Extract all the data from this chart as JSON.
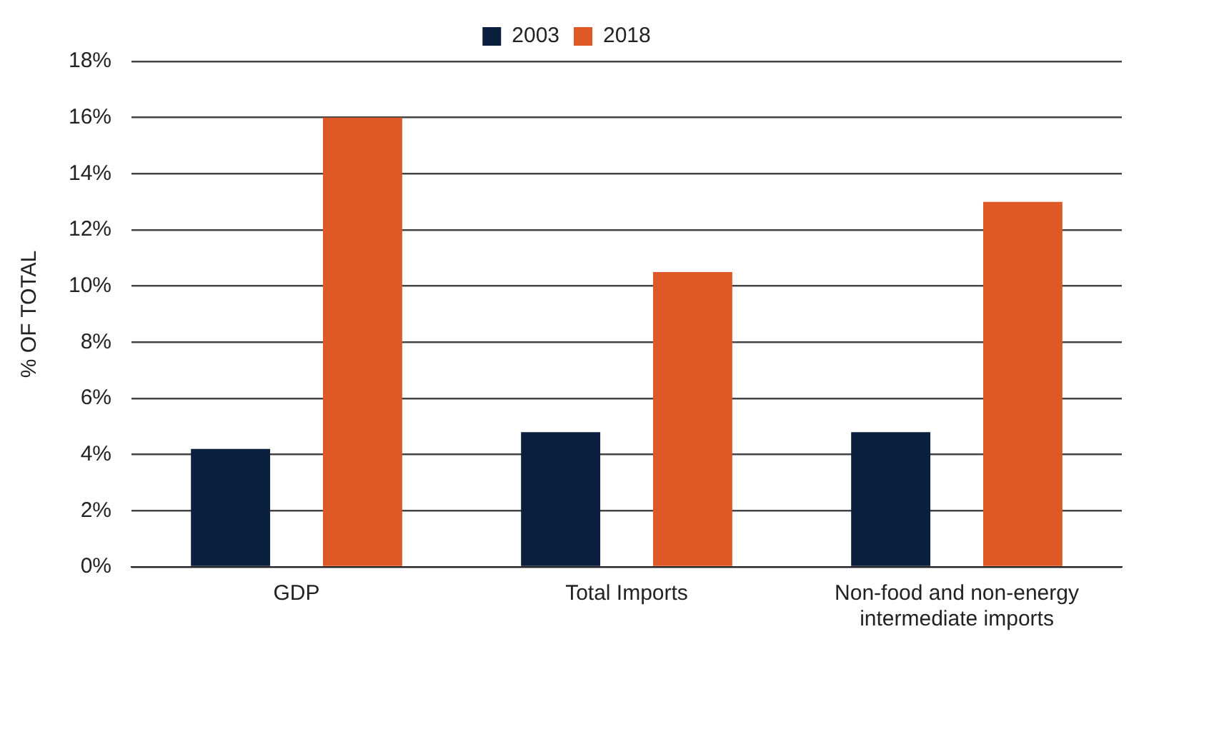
{
  "chart_data": {
    "type": "bar",
    "ylabel": "% OF TOTAL",
    "categories": [
      "GDP",
      "Total Imports",
      "Non-food and non-energy intermediate imports"
    ],
    "series": [
      {
        "name": "2003",
        "color": "#0b1f3f",
        "values": [
          4.2,
          4.8,
          4.8
        ]
      },
      {
        "name": "2018",
        "color": "#df5926",
        "values": [
          16.0,
          10.5,
          13.0
        ]
      }
    ],
    "ylim": [
      0,
      18
    ],
    "yticks": [
      {
        "value": 0,
        "label": "0%"
      },
      {
        "value": 2,
        "label": "2%"
      },
      {
        "value": 4,
        "label": "4%"
      },
      {
        "value": 6,
        "label": "6%"
      },
      {
        "value": 8,
        "label": "8%"
      },
      {
        "value": 10,
        "label": "10%"
      },
      {
        "value": 12,
        "label": "12%"
      },
      {
        "value": 14,
        "label": "14%"
      },
      {
        "value": 16,
        "label": "16%"
      },
      {
        "value": 18,
        "label": "18%"
      }
    ],
    "grid": "y",
    "legend": "top"
  }
}
